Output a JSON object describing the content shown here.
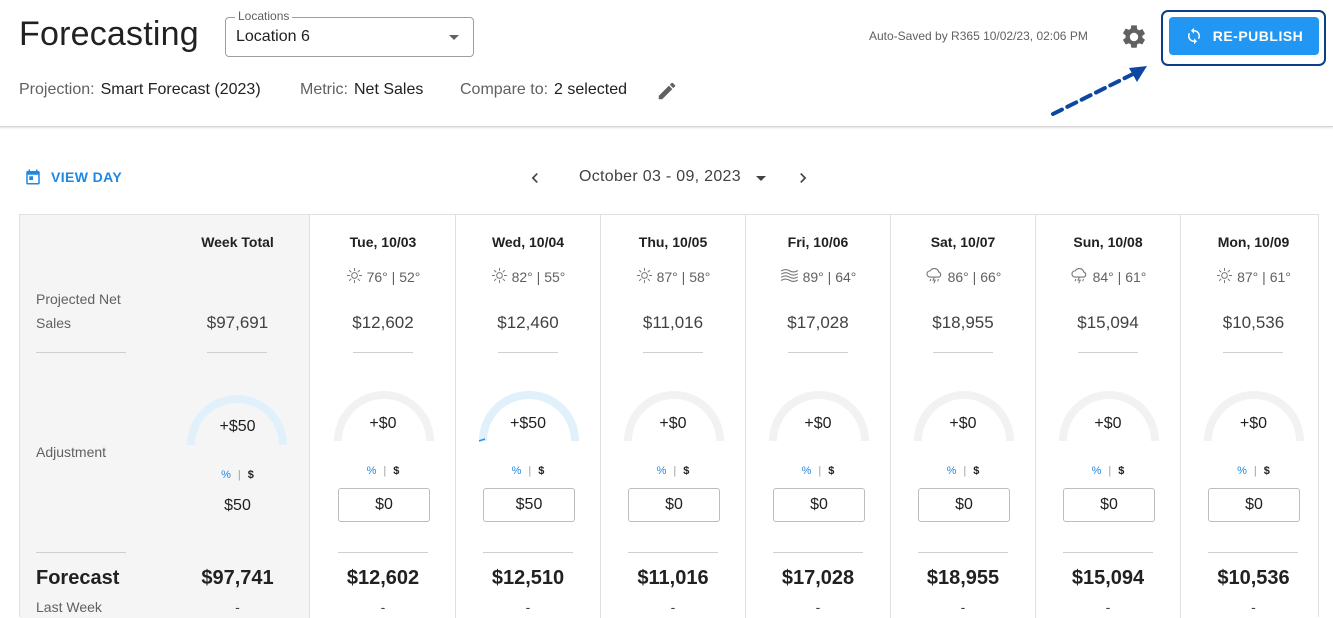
{
  "header": {
    "title": "Forecasting",
    "locations": {
      "legend": "Locations",
      "selected": "Location 6"
    },
    "projection": {
      "label": "Projection:",
      "value": "Smart Forecast (2023)"
    },
    "metric": {
      "label": "Metric:",
      "value": "Net Sales"
    },
    "compare": {
      "label": "Compare to:",
      "value": "2 selected"
    },
    "autosave": "Auto-Saved by R365 10/02/23, 02:06 PM",
    "republish_label": "RE-PUBLISH"
  },
  "toolbar": {
    "view_day": "VIEW DAY",
    "date_range": "October 03 - 09, 2023"
  },
  "rows": {
    "projected": "Projected Net Sales",
    "adjustment": "Adjustment",
    "forecast": "Forecast",
    "last_week": "Last Week"
  },
  "toggle": {
    "pct": "%",
    "sep": "|",
    "dol": "$"
  },
  "week_total": {
    "label": "Week Total",
    "projected": "$97,691",
    "gauge": "+$50",
    "gauge_fraction": 0.5,
    "adjustment": "$50",
    "forecast": "$97,741",
    "last_week": "-"
  },
  "days": [
    {
      "label": "Tue, 10/03",
      "weather_icon": "sun-icon",
      "weather": "76° | 52°",
      "projected": "$12,602",
      "gauge": "+$0",
      "gauge_fraction": 0,
      "adjustment": "$0",
      "forecast": "$12,602",
      "last_week": "-"
    },
    {
      "label": "Wed, 10/04",
      "weather_icon": "sun-icon",
      "weather": "82° | 55°",
      "projected": "$12,460",
      "gauge": "+$50",
      "gauge_fraction": 0.5,
      "adjustment": "$50",
      "forecast": "$12,510",
      "last_week": "-"
    },
    {
      "label": "Thu, 10/05",
      "weather_icon": "sun-icon",
      "weather": "87° | 58°",
      "projected": "$11,016",
      "gauge": "+$0",
      "gauge_fraction": 0,
      "adjustment": "$0",
      "forecast": "$11,016",
      "last_week": "-"
    },
    {
      "label": "Fri, 10/06",
      "weather_icon": "haze-icon",
      "weather": "89° | 64°",
      "projected": "$17,028",
      "gauge": "+$0",
      "gauge_fraction": 0,
      "adjustment": "$0",
      "forecast": "$17,028",
      "last_week": "-"
    },
    {
      "label": "Sat, 10/07",
      "weather_icon": "storm-cloud-icon",
      "weather": "86° | 66°",
      "projected": "$18,955",
      "gauge": "+$0",
      "gauge_fraction": 0,
      "adjustment": "$0",
      "forecast": "$18,955",
      "last_week": "-"
    },
    {
      "label": "Sun, 10/08",
      "weather_icon": "storm-cloud-icon",
      "weather": "84° | 61°",
      "projected": "$15,094",
      "gauge": "+$0",
      "gauge_fraction": 0,
      "adjustment": "$0",
      "forecast": "$15,094",
      "last_week": "-"
    },
    {
      "label": "Mon, 10/09",
      "weather_icon": "sun-icon",
      "weather": "87° | 61°",
      "projected": "$10,536",
      "gauge": "+$0",
      "gauge_fraction": 0,
      "adjustment": "$0",
      "forecast": "$10,536",
      "last_week": "-"
    }
  ],
  "colors": {
    "accent": "#2196f3",
    "gauge_fill": "#e1f1fb",
    "gauge_track": "#f2f2f2",
    "outline": "#0d3f87"
  }
}
